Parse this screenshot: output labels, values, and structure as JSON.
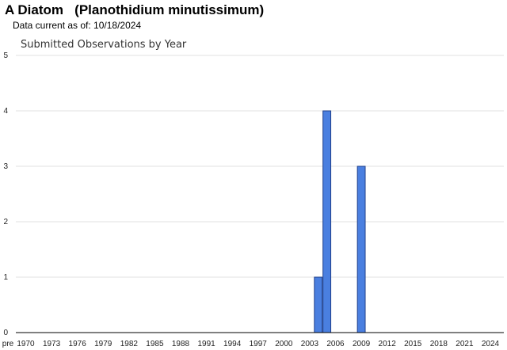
{
  "header": {
    "title": "A Diatom   (Planothidium minutissimum)",
    "data_current": "Data current as of: 10/18/2024"
  },
  "chart_data": {
    "type": "bar",
    "title": "Submitted Observations by Year",
    "xlabel": "",
    "ylabel": "",
    "ylim": [
      0,
      5
    ],
    "yticks": [
      0,
      1,
      2,
      3,
      4,
      5
    ],
    "grid": true,
    "legend": "none",
    "bar_color": "#4a7fe0",
    "bar_edge_color": "#1f3f8a",
    "x_tick_labels": [
      "pre",
      "1970",
      "1973",
      "1976",
      "1979",
      "1982",
      "1985",
      "1988",
      "1991",
      "1994",
      "1997",
      "2000",
      "2003",
      "2006",
      "2009",
      "2012",
      "2015",
      "2018",
      "2021",
      "2024"
    ],
    "categories": [
      "2004",
      "2005",
      "2009"
    ],
    "values": [
      1,
      4,
      3
    ]
  }
}
